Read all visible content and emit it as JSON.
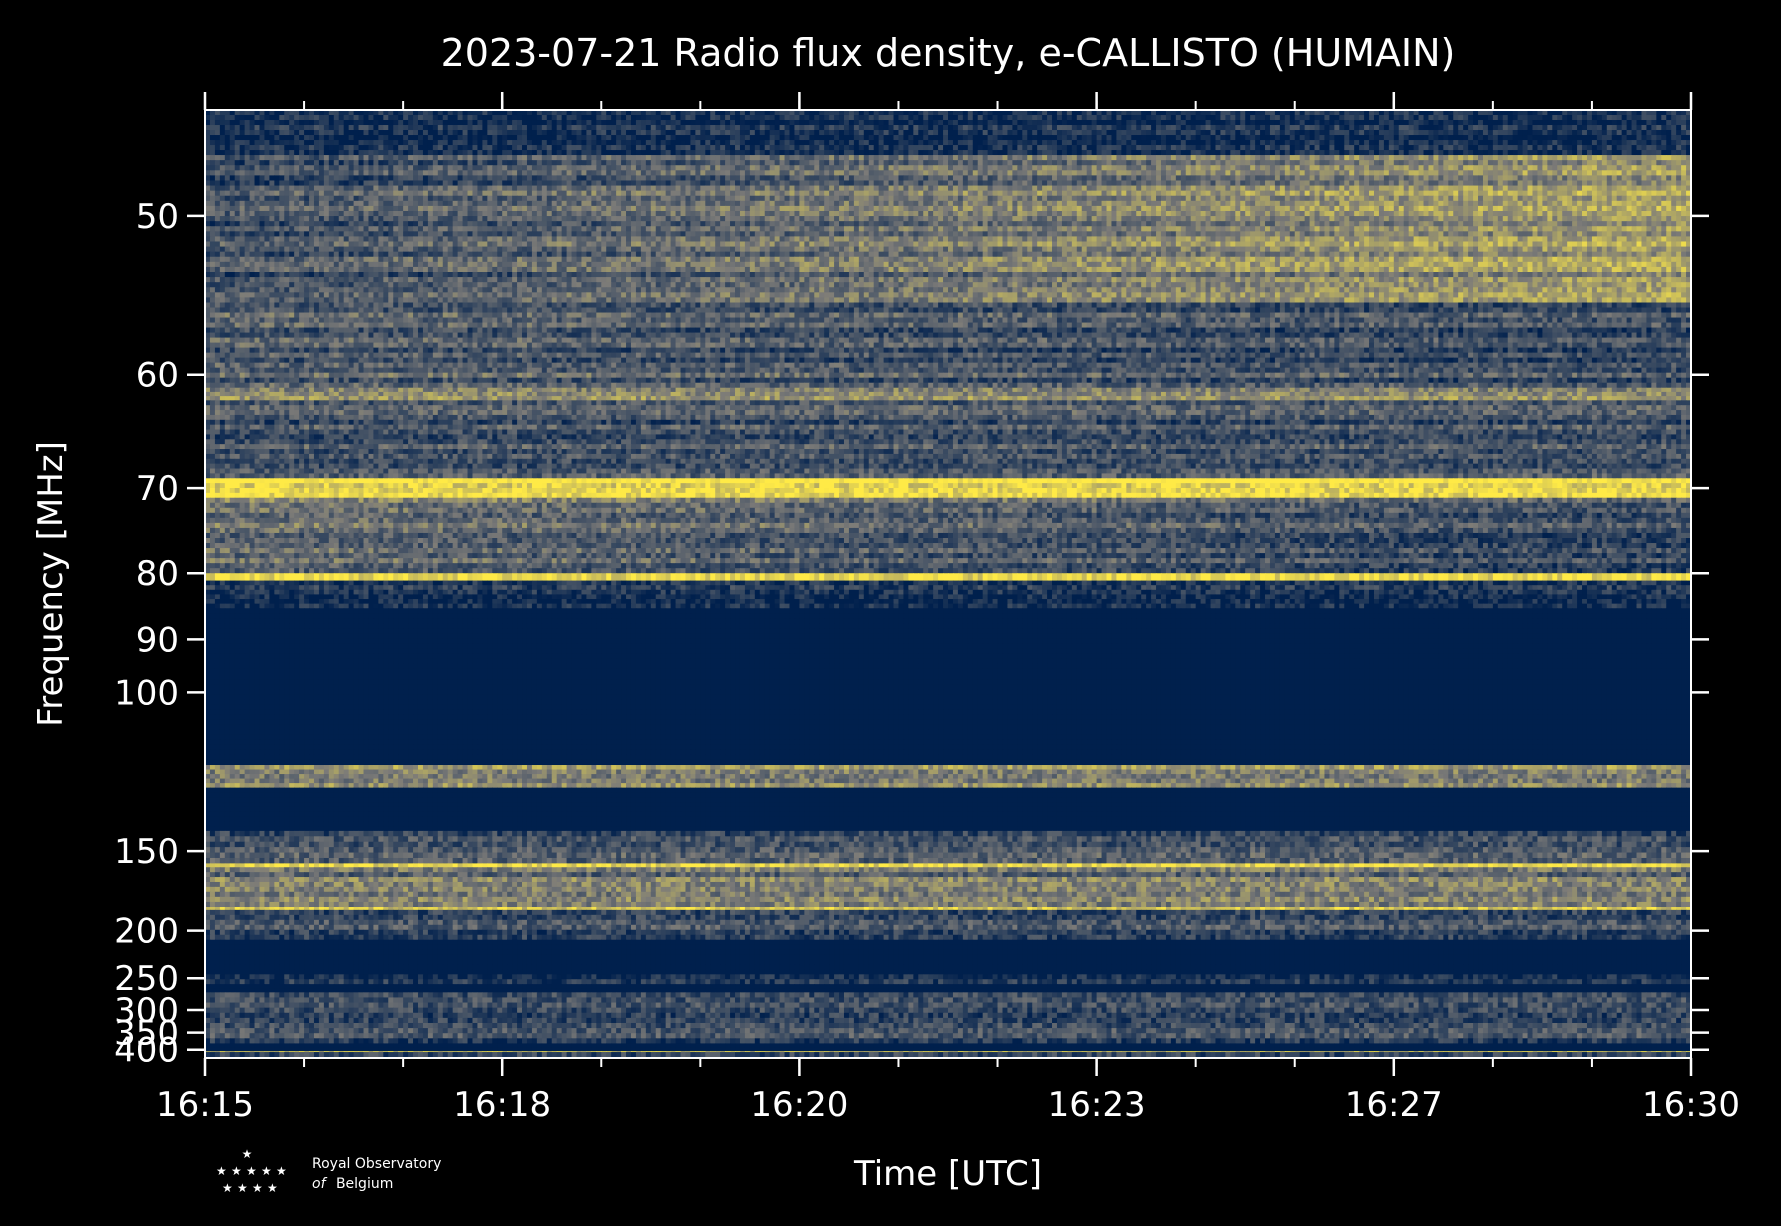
{
  "chart_data": {
    "type": "heatmap",
    "title": "2023-07-21 Radio flux density, e-CALLISTO (HUMAIN)",
    "xlabel": "Time [UTC]",
    "ylabel": "Frequency [MHz]",
    "x_tick_labels": [
      "16:15",
      "16:18",
      "16:20",
      "16:23",
      "16:27",
      "16:30"
    ],
    "xlim_minutes": [
      0,
      15
    ],
    "y_tick_labels": [
      "50",
      "60",
      "70",
      "80",
      "90",
      "100",
      "150",
      "200",
      "250",
      "300",
      "350",
      "400"
    ],
    "y_tick_values": [
      50,
      60,
      70,
      80,
      90,
      100,
      150,
      200,
      250,
      300,
      350,
      400
    ],
    "y_scale": "reciprocal",
    "ylim": [
      45,
      430
    ],
    "colormap": {
      "low": "#00204d",
      "mid": "#7c7b78",
      "high": "#ffea46",
      "name": "cividis"
    },
    "bands": [
      {
        "f0": 45,
        "f1": 47,
        "level": 0.05,
        "trend": 0.0
      },
      {
        "f0": 47,
        "f1": 55,
        "level": 0.45,
        "trend": 0.4
      },
      {
        "f0": 55,
        "f1": 61,
        "level": 0.3,
        "trend": -0.1
      },
      {
        "f0": 61,
        "f1": 62,
        "level": 0.6,
        "trend": 0.0
      },
      {
        "f0": 62,
        "f1": 69,
        "level": 0.3,
        "trend": 0.0
      },
      {
        "f0": 69,
        "f1": 71,
        "level": 0.95,
        "trend": 0.0
      },
      {
        "f0": 71,
        "f1": 80,
        "level": 0.35,
        "trend": -0.2
      },
      {
        "f0": 80,
        "f1": 81,
        "level": 0.9,
        "trend": 0.0
      },
      {
        "f0": 81,
        "f1": 85,
        "level": 0.12,
        "trend": 0.0
      },
      {
        "f0": 85,
        "f1": 118,
        "level": 0.0,
        "trend": 0.0
      },
      {
        "f0": 118,
        "f1": 125,
        "level": 0.55,
        "trend": 0.0
      },
      {
        "f0": 125,
        "f1": 141,
        "level": 0.0,
        "trend": 0.0
      },
      {
        "f0": 141,
        "f1": 156,
        "level": 0.25,
        "trend": 0.0
      },
      {
        "f0": 156,
        "f1": 158,
        "level": 0.92,
        "trend": 0.0
      },
      {
        "f0": 158,
        "f1": 172,
        "level": 0.45,
        "trend": 0.0
      },
      {
        "f0": 172,
        "f1": 182,
        "level": 0.55,
        "trend": 0.0
      },
      {
        "f0": 182,
        "f1": 184,
        "level": 0.85,
        "trend": 0.0
      },
      {
        "f0": 184,
        "f1": 208,
        "level": 0.22,
        "trend": 0.0
      },
      {
        "f0": 208,
        "f1": 245,
        "level": 0.0,
        "trend": 0.0
      },
      {
        "f0": 245,
        "f1": 258,
        "level": 0.15,
        "trend": 0.0
      },
      {
        "f0": 258,
        "f1": 270,
        "level": 0.0,
        "trend": 0.0
      },
      {
        "f0": 270,
        "f1": 380,
        "level": 0.25,
        "trend": 0.0
      },
      {
        "f0": 380,
        "f1": 405,
        "level": 0.0,
        "trend": 0.0
      },
      {
        "f0": 405,
        "f1": 408,
        "level": 0.85,
        "trend": 0.0
      },
      {
        "f0": 408,
        "f1": 430,
        "level": 0.15,
        "trend": 0.0
      }
    ]
  },
  "logo": {
    "line1": "Royal Observatory",
    "line2_italic": "of",
    "line2": "Belgium"
  }
}
